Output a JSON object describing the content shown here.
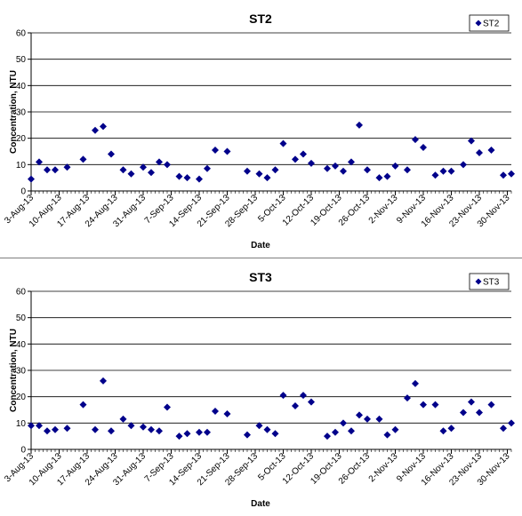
{
  "colors": {
    "marker": "#00008B",
    "grid": "#000000",
    "axis": "#000000"
  },
  "chart_data": [
    {
      "type": "scatter",
      "title": "ST2",
      "xlabel": "Date",
      "ylabel": "Concentration, NTU",
      "ylim": [
        0,
        60
      ],
      "yticks": [
        0,
        10,
        20,
        30,
        40,
        50,
        60
      ],
      "xlim": [
        "2013-08-03",
        "2013-12-01"
      ],
      "xtick_labels": [
        "3-Aug-13",
        "10-Aug-13",
        "17-Aug-13",
        "24-Aug-13",
        "31-Aug-13",
        "7-Sep-13",
        "14-Sep-13",
        "21-Sep-13",
        "28-Sep-13",
        "5-Oct-13",
        "12-Oct-13",
        "19-Oct-13",
        "26-Oct-13",
        "2-Nov-13",
        "9-Nov-13",
        "16-Nov-13",
        "23-Nov-13",
        "30-Nov-13"
      ],
      "xtick_dates": [
        "2013-08-03",
        "2013-08-10",
        "2013-08-17",
        "2013-08-24",
        "2013-08-31",
        "2013-09-07",
        "2013-09-14",
        "2013-09-21",
        "2013-09-28",
        "2013-10-05",
        "2013-10-12",
        "2013-10-19",
        "2013-10-26",
        "2013-11-02",
        "2013-11-09",
        "2013-11-16",
        "2013-11-23",
        "2013-11-30"
      ],
      "grid": "horizontal",
      "legend": "top-right",
      "series": [
        {
          "name": "ST2",
          "marker": "diamond",
          "points": [
            {
              "x": "2013-08-03",
              "y": 4.5
            },
            {
              "x": "2013-08-05",
              "y": 11
            },
            {
              "x": "2013-08-07",
              "y": 8
            },
            {
              "x": "2013-08-09",
              "y": 8
            },
            {
              "x": "2013-08-12",
              "y": 9
            },
            {
              "x": "2013-08-16",
              "y": 12
            },
            {
              "x": "2013-08-19",
              "y": 23
            },
            {
              "x": "2013-08-21",
              "y": 24.5
            },
            {
              "x": "2013-08-23",
              "y": 14
            },
            {
              "x": "2013-08-26",
              "y": 8
            },
            {
              "x": "2013-08-28",
              "y": 6.5
            },
            {
              "x": "2013-08-31",
              "y": 9
            },
            {
              "x": "2013-09-02",
              "y": 7
            },
            {
              "x": "2013-09-04",
              "y": 11
            },
            {
              "x": "2013-09-06",
              "y": 10
            },
            {
              "x": "2013-09-09",
              "y": 5.5
            },
            {
              "x": "2013-09-11",
              "y": 5
            },
            {
              "x": "2013-09-14",
              "y": 4.5
            },
            {
              "x": "2013-09-16",
              "y": 8.5
            },
            {
              "x": "2013-09-18",
              "y": 15.5
            },
            {
              "x": "2013-09-21",
              "y": 15
            },
            {
              "x": "2013-09-26",
              "y": 7.5
            },
            {
              "x": "2013-09-29",
              "y": 6.5
            },
            {
              "x": "2013-10-01",
              "y": 5
            },
            {
              "x": "2013-10-03",
              "y": 8
            },
            {
              "x": "2013-10-05",
              "y": 18
            },
            {
              "x": "2013-10-08",
              "y": 12
            },
            {
              "x": "2013-10-10",
              "y": 14
            },
            {
              "x": "2013-10-12",
              "y": 10.5
            },
            {
              "x": "2013-10-16",
              "y": 8.5
            },
            {
              "x": "2013-10-18",
              "y": 9.5
            },
            {
              "x": "2013-10-20",
              "y": 7.5
            },
            {
              "x": "2013-10-22",
              "y": 11
            },
            {
              "x": "2013-10-24",
              "y": 25
            },
            {
              "x": "2013-10-26",
              "y": 8
            },
            {
              "x": "2013-10-29",
              "y": 5
            },
            {
              "x": "2013-10-31",
              "y": 5.5
            },
            {
              "x": "2013-11-02",
              "y": 9.5
            },
            {
              "x": "2013-11-05",
              "y": 8
            },
            {
              "x": "2013-11-07",
              "y": 19.5
            },
            {
              "x": "2013-11-09",
              "y": 16.5
            },
            {
              "x": "2013-11-12",
              "y": 6
            },
            {
              "x": "2013-11-14",
              "y": 7.5
            },
            {
              "x": "2013-11-16",
              "y": 7.5
            },
            {
              "x": "2013-11-19",
              "y": 10
            },
            {
              "x": "2013-11-21",
              "y": 19
            },
            {
              "x": "2013-11-23",
              "y": 14.5
            },
            {
              "x": "2013-11-26",
              "y": 15.5
            },
            {
              "x": "2013-11-29",
              "y": 6
            },
            {
              "x": "2013-12-01",
              "y": 6.5
            }
          ]
        }
      ]
    },
    {
      "type": "scatter",
      "title": "ST3",
      "xlabel": "Date",
      "ylabel": "Concentration, NTU",
      "ylim": [
        0,
        60
      ],
      "yticks": [
        0,
        10,
        20,
        30,
        40,
        50,
        60
      ],
      "xlim": [
        "2013-08-03",
        "2013-12-01"
      ],
      "xtick_labels": [
        "3-Aug-13",
        "10-Aug-13",
        "17-Aug-13",
        "24-Aug-13",
        "31-Aug-13",
        "7-Sep-13",
        "14-Sep-13",
        "21-Sep-13",
        "28-Sep-13",
        "5-Oct-13",
        "12-Oct-13",
        "19-Oct-13",
        "26-Oct-13",
        "2-Nov-13",
        "9-Nov-13",
        "16-Nov-13",
        "23-Nov-13",
        "30-Nov-13"
      ],
      "xtick_dates": [
        "2013-08-03",
        "2013-08-10",
        "2013-08-17",
        "2013-08-24",
        "2013-08-31",
        "2013-09-07",
        "2013-09-14",
        "2013-09-21",
        "2013-09-28",
        "2013-10-05",
        "2013-10-12",
        "2013-10-19",
        "2013-10-26",
        "2013-11-02",
        "2013-11-09",
        "2013-11-16",
        "2013-11-23",
        "2013-11-30"
      ],
      "grid": "horizontal",
      "legend": "top-right",
      "series": [
        {
          "name": "ST3",
          "marker": "diamond",
          "points": [
            {
              "x": "2013-08-03",
              "y": 9
            },
            {
              "x": "2013-08-05",
              "y": 9
            },
            {
              "x": "2013-08-07",
              "y": 7
            },
            {
              "x": "2013-08-09",
              "y": 7.5
            },
            {
              "x": "2013-08-12",
              "y": 8
            },
            {
              "x": "2013-08-16",
              "y": 17
            },
            {
              "x": "2013-08-19",
              "y": 7.5
            },
            {
              "x": "2013-08-21",
              "y": 26
            },
            {
              "x": "2013-08-23",
              "y": 7
            },
            {
              "x": "2013-08-26",
              "y": 11.5
            },
            {
              "x": "2013-08-28",
              "y": 9
            },
            {
              "x": "2013-08-31",
              "y": 8.5
            },
            {
              "x": "2013-09-02",
              "y": 7.5
            },
            {
              "x": "2013-09-04",
              "y": 7
            },
            {
              "x": "2013-09-06",
              "y": 16
            },
            {
              "x": "2013-09-09",
              "y": 5
            },
            {
              "x": "2013-09-11",
              "y": 6
            },
            {
              "x": "2013-09-14",
              "y": 6.5
            },
            {
              "x": "2013-09-16",
              "y": 6.5
            },
            {
              "x": "2013-09-18",
              "y": 14.5
            },
            {
              "x": "2013-09-21",
              "y": 13.5
            },
            {
              "x": "2013-09-26",
              "y": 5.5
            },
            {
              "x": "2013-09-29",
              "y": 9
            },
            {
              "x": "2013-10-01",
              "y": 7.5
            },
            {
              "x": "2013-10-03",
              "y": 6
            },
            {
              "x": "2013-10-05",
              "y": 20.5
            },
            {
              "x": "2013-10-08",
              "y": 16.5
            },
            {
              "x": "2013-10-10",
              "y": 20.5
            },
            {
              "x": "2013-10-12",
              "y": 18
            },
            {
              "x": "2013-10-16",
              "y": 5
            },
            {
              "x": "2013-10-18",
              "y": 6.5
            },
            {
              "x": "2013-10-20",
              "y": 10
            },
            {
              "x": "2013-10-22",
              "y": 7
            },
            {
              "x": "2013-10-24",
              "y": 13
            },
            {
              "x": "2013-10-26",
              "y": 11.5
            },
            {
              "x": "2013-10-29",
              "y": 11.5
            },
            {
              "x": "2013-10-31",
              "y": 5.5
            },
            {
              "x": "2013-11-02",
              "y": 7.5
            },
            {
              "x": "2013-11-05",
              "y": 19.5
            },
            {
              "x": "2013-11-07",
              "y": 25
            },
            {
              "x": "2013-11-09",
              "y": 17
            },
            {
              "x": "2013-11-12",
              "y": 17
            },
            {
              "x": "2013-11-14",
              "y": 7
            },
            {
              "x": "2013-11-16",
              "y": 8
            },
            {
              "x": "2013-11-19",
              "y": 14
            },
            {
              "x": "2013-11-21",
              "y": 18
            },
            {
              "x": "2013-11-23",
              "y": 14
            },
            {
              "x": "2013-11-26",
              "y": 17
            },
            {
              "x": "2013-11-29",
              "y": 8
            },
            {
              "x": "2013-12-01",
              "y": 10
            }
          ]
        }
      ]
    }
  ]
}
